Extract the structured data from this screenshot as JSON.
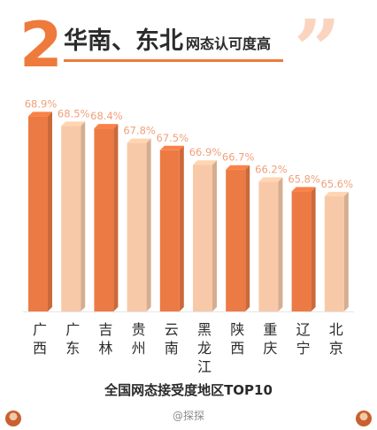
{
  "header": {
    "number": "2",
    "title_main": "华南、东北",
    "title_sub": "网态认可度高",
    "quote_mark": "”"
  },
  "chart_data": {
    "type": "bar",
    "title": "全国网态接受度地区TOP10",
    "categories": [
      "广西",
      "广东",
      "吉林",
      "贵州",
      "云南",
      "黑龙江",
      "陕西",
      "重庆",
      "辽宁",
      "北京"
    ],
    "values": [
      68.9,
      68.5,
      68.4,
      67.8,
      67.5,
      66.9,
      66.7,
      66.2,
      65.8,
      65.6
    ],
    "value_labels": [
      "68.9%",
      "68.5%",
      "68.4%",
      "67.8%",
      "67.5%",
      "66.9%",
      "66.7%",
      "66.2%",
      "65.8%",
      "65.6%"
    ],
    "unit": "%",
    "colors": [
      "#ec7a44",
      "#f8c9a8",
      "#ec7a44",
      "#f8c9a8",
      "#ec7a44",
      "#f8c9a8",
      "#ec7a44",
      "#f8c9a8",
      "#ec7a44",
      "#f8c9a8"
    ],
    "label_color": "#f0a07a",
    "xlabel": "",
    "ylabel": "",
    "grid": false,
    "legend": "none"
  },
  "footer": {
    "credit": "@探探"
  }
}
